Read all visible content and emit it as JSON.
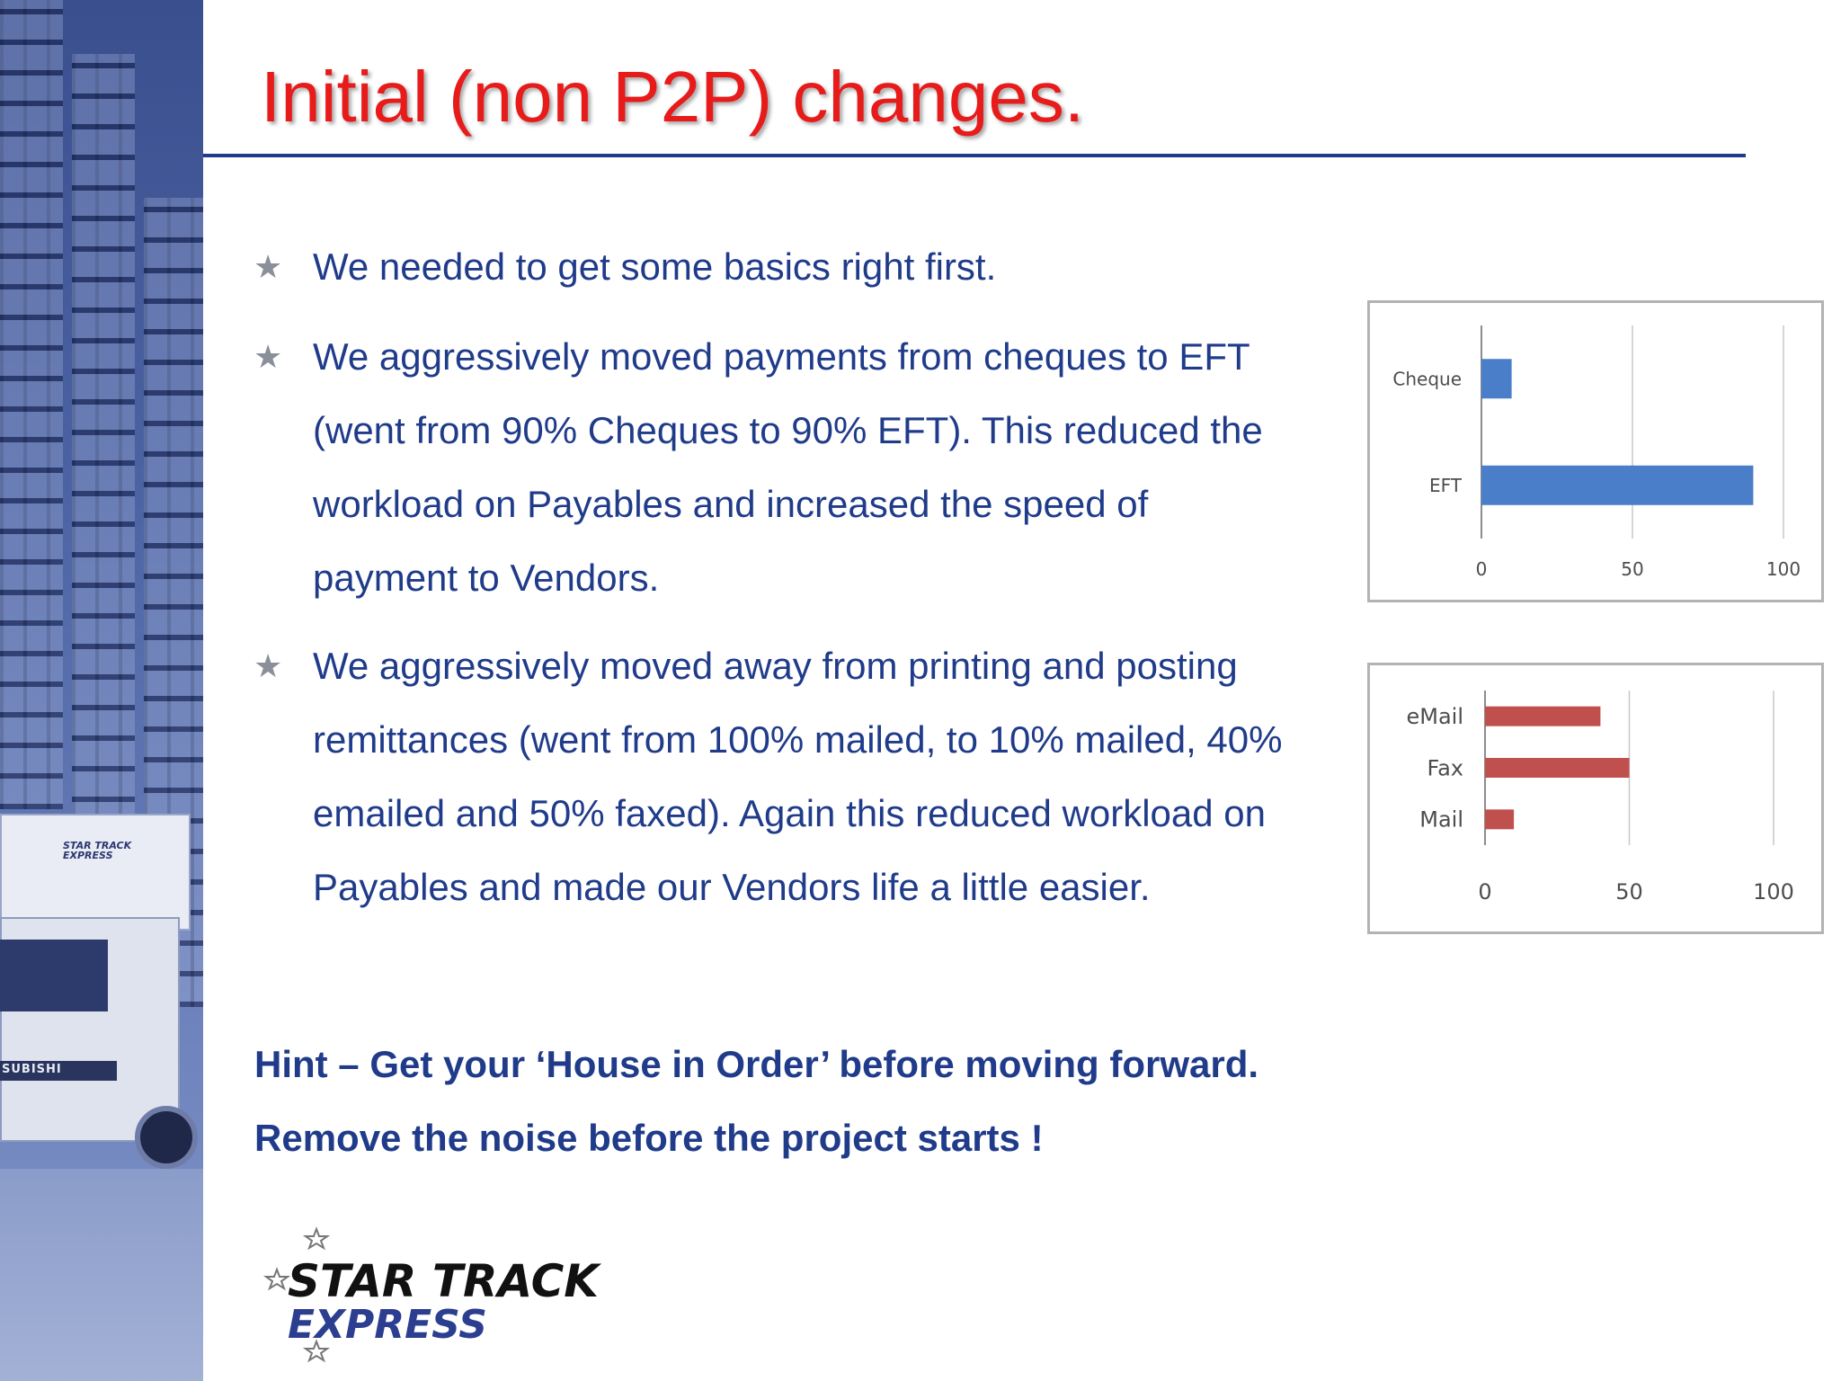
{
  "slide": {
    "title": "Initial (non P2P) changes.",
    "bullets": [
      {
        "lines": [
          "We needed to get some basics right first."
        ]
      },
      {
        "lines": [
          "We aggressively moved payments from cheques to EFT",
          "(went from 90% Cheques to 90% EFT).  This reduced the",
          "workload on Payables and increased the speed of",
          "payment to Vendors."
        ]
      },
      {
        "lines": [
          "We aggressively moved away from printing and posting",
          "remittances (went from 100% mailed, to 10% mailed, 40%",
          "emailed and 50% faxed).  Again this reduced workload on",
          "Payables and made our Vendors life a little easier."
        ]
      }
    ],
    "hints": [
      "Hint – Get your ‘House in Order’ before moving forward.",
      "Remove the noise before the project starts !"
    ],
    "colors": {
      "title": "#e81b1b",
      "body_text": "#1f3b8a",
      "rule": "#1f3b8a",
      "bullet_star": "#8a8f99"
    },
    "bullet_icon": "star-icon"
  },
  "logo": {
    "line1": "STAR TRACK",
    "line2": "EXPRESS",
    "icon": "star-outline-icon"
  },
  "photo": {
    "truck_label_1": "STAR TRACK",
    "truck_label_2": "EXPRESS",
    "grille_text": "SUBISHI"
  },
  "chart_data": [
    {
      "type": "bar",
      "orientation": "horizontal",
      "categories": [
        "Cheque",
        "EFT"
      ],
      "series": [
        {
          "values": [
            10,
            90
          ],
          "color": "#4a7ec8"
        }
      ],
      "xlim": [
        0,
        100
      ],
      "xticks": [
        "0",
        "50",
        "100"
      ],
      "title": "",
      "xlabel": "",
      "ylabel": "",
      "grid": "vertical"
    },
    {
      "type": "bar",
      "orientation": "horizontal",
      "categories": [
        "eMail",
        "Fax",
        "Mail"
      ],
      "series": [
        {
          "values": [
            40,
            50,
            10
          ],
          "color": "#c0504d"
        }
      ],
      "xlim": [
        0,
        100
      ],
      "xticks": [
        "0",
        "50",
        "100"
      ],
      "title": "",
      "xlabel": "",
      "ylabel": "",
      "grid": "vertical"
    }
  ]
}
